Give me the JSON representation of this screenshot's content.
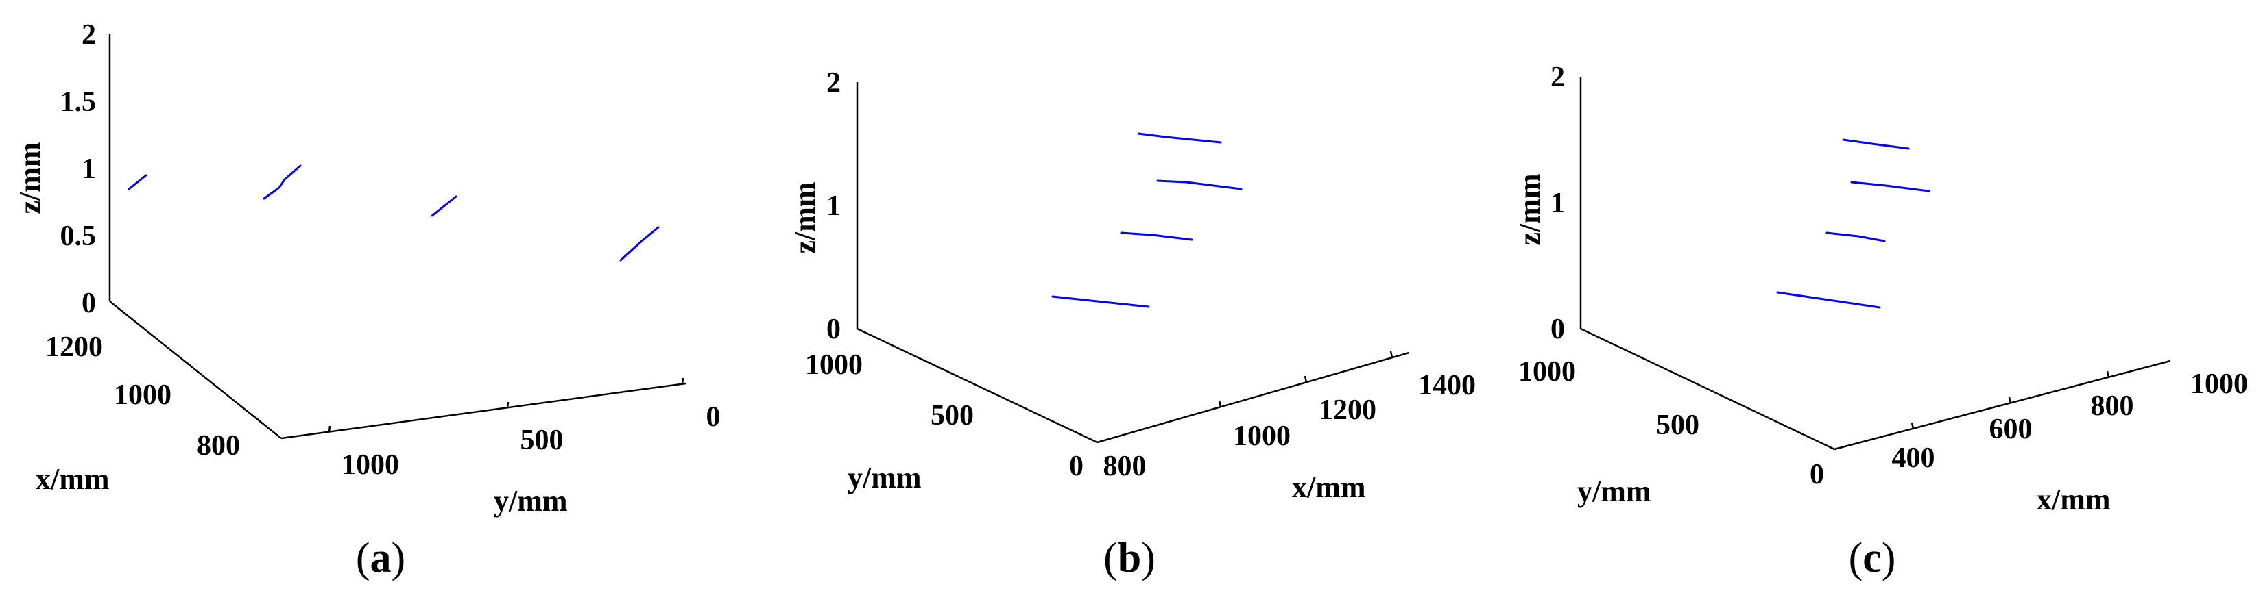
{
  "chart_data": [
    {
      "id": "a",
      "type": "line",
      "caption_open": "(",
      "caption_letter": "a",
      "caption_close": ")",
      "color": "#0000ff",
      "xlabel": "x/mm",
      "ylabel": "y/mm",
      "zlabel": "z/mm",
      "xlim": [
        800,
        1200
      ],
      "ylim": [
        0,
        1000
      ],
      "zlim": [
        0,
        2
      ],
      "x_ticks": [
        "800",
        "1000",
        "1200"
      ],
      "y_ticks": [
        "1000",
        "500",
        "0"
      ],
      "z_ticks": [
        "0",
        "0.5",
        "1",
        "1.5",
        "2"
      ],
      "series": [
        {
          "x": [
            880,
            1160
          ],
          "y": [
            980,
            1010
          ],
          "z": [
            1.05,
            0.8
          ]
        },
        {
          "x": [
            880,
            1160
          ],
          "y": [
            700,
            720
          ],
          "z": [
            1.02,
            0.7
          ]
        },
        {
          "x": [
            880,
            1160
          ],
          "y": [
            380,
            380
          ],
          "z": [
            0.95,
            0.6
          ]
        },
        {
          "x": [
            880,
            1160
          ],
          "y": [
            80,
            90
          ],
          "z": [
            0.95,
            0.45
          ]
        }
      ]
    },
    {
      "id": "b",
      "type": "line",
      "caption_open": "(",
      "caption_letter": "b",
      "caption_close": ")",
      "color": "#0000ff",
      "xlabel": "x/mm",
      "ylabel": "y/mm",
      "zlabel": "z/mm",
      "xlim": [
        800,
        1400
      ],
      "ylim": [
        0,
        1000
      ],
      "zlim": [
        0,
        2
      ],
      "x_ticks": [
        "800",
        "1000",
        "1200",
        "1400"
      ],
      "y_ticks": [
        "0",
        "500",
        "1000"
      ],
      "z_ticks": [
        "0",
        "1",
        "2"
      ],
      "series": [
        {
          "x": [
            1050,
            1200
          ],
          "y": [
            500,
            500
          ],
          "z": [
            1.9,
            1.85
          ]
        },
        {
          "x": [
            1050,
            1200
          ],
          "y": [
            600,
            600
          ],
          "z": [
            1.55,
            1.45
          ]
        },
        {
          "x": [
            1050,
            1200
          ],
          "y": [
            700,
            700
          ],
          "z": [
            1.1,
            0.95
          ]
        },
        {
          "x": [
            1050,
            1200
          ],
          "y": [
            850,
            850
          ],
          "z": [
            0.5,
            0.3
          ]
        }
      ]
    },
    {
      "id": "c",
      "type": "line",
      "caption_open": "(",
      "caption_letter": "c",
      "caption_close": ")",
      "color": "#0000ff",
      "xlabel": "x/mm",
      "ylabel": "y/mm",
      "zlabel": "z/mm",
      "xlim": [
        300,
        1000
      ],
      "ylim": [
        0,
        1000
      ],
      "zlim": [
        0,
        2
      ],
      "x_ticks": [
        "400",
        "600",
        "800",
        "1000"
      ],
      "y_ticks": [
        "0",
        "500",
        "1000"
      ],
      "z_ticks": [
        "0",
        "1",
        "2"
      ],
      "series": [
        {
          "x": [
            500,
            620
          ],
          "y": [
            480,
            480
          ],
          "z": [
            1.75,
            1.65
          ]
        },
        {
          "x": [
            500,
            650
          ],
          "y": [
            580,
            580
          ],
          "z": [
            1.4,
            1.3
          ]
        },
        {
          "x": [
            500,
            620
          ],
          "y": [
            680,
            680
          ],
          "z": [
            0.95,
            0.85
          ]
        },
        {
          "x": [
            500,
            680
          ],
          "y": [
            820,
            820
          ],
          "z": [
            0.45,
            0.3
          ]
        }
      ]
    }
  ]
}
